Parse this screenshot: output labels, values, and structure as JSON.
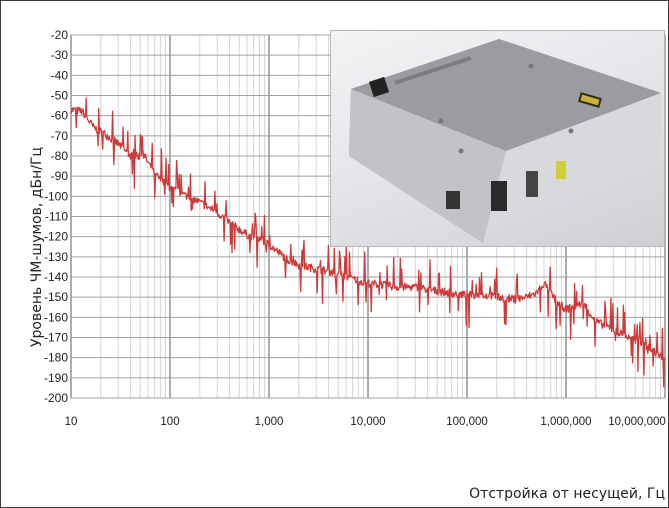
{
  "chart_data": {
    "type": "line",
    "title": "",
    "xlabel": "Отстройка от несущей, Гц",
    "ylabel": "Уровень ЧМ-шумов, дБн/Гц",
    "xscale": "log",
    "xlim": [
      10,
      10000000
    ],
    "ylim": [
      -200,
      -20
    ],
    "x_ticks": [
      {
        "value": 10,
        "label": "10"
      },
      {
        "value": 100,
        "label": "100"
      },
      {
        "value": 1000,
        "label": "1,000"
      },
      {
        "value": 10000,
        "label": "10,000"
      },
      {
        "value": 100000,
        "label": "100,000"
      },
      {
        "value": 1000000,
        "label": "1,000,000"
      },
      {
        "value": 10000000,
        "label": "10,000,000"
      }
    ],
    "y_ticks": [
      -20,
      -30,
      -40,
      -50,
      -60,
      -70,
      -80,
      -90,
      -100,
      -110,
      -120,
      -130,
      -140,
      -150,
      -160,
      -170,
      -180,
      -190,
      -200
    ],
    "grid": true,
    "line_color": "#cc3b3b",
    "series": [
      {
        "x": [
          10,
          13,
          17,
          22,
          30,
          40,
          55,
          70,
          100,
          150,
          200,
          300,
          400,
          600,
          800,
          1000,
          1500,
          2000,
          3000,
          5000,
          7000,
          10000,
          15000,
          20000,
          30000,
          50000,
          70000,
          100000,
          150000,
          200000,
          300000,
          400000,
          500000,
          600000,
          700000,
          800000,
          1000000,
          1500000,
          2000000,
          3000000,
          5000000,
          7000000,
          10000000
        ],
        "y": [
          -57,
          -58,
          -66,
          -69,
          -74,
          -80,
          -80,
          -89,
          -96,
          -100,
          -103,
          -108,
          -113,
          -119,
          -121,
          -124,
          -131,
          -134,
          -136,
          -138,
          -141,
          -143,
          -144,
          -145,
          -145,
          -147,
          -148,
          -149,
          -149,
          -150,
          -151,
          -150,
          -148,
          -143,
          -148,
          -152,
          -156,
          -153,
          -162,
          -166,
          -172,
          -175,
          -181
        ]
      }
    ],
    "inset_photo": "device-photo"
  }
}
